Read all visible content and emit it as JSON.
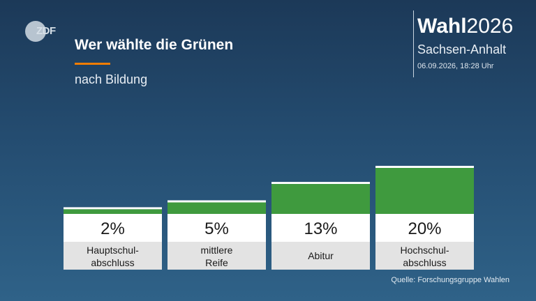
{
  "logo": {
    "text": "ZDF"
  },
  "header": {
    "title": "Wer wählte die Grünen",
    "subtitle": "nach Bildung"
  },
  "brand": {
    "name": "Wahl",
    "year": "2026",
    "region": "Sachsen-Anhalt",
    "timestamp": "06.09.2026, 18:28 Uhr"
  },
  "source": "Quelle: Forschungsgruppe Wahlen",
  "colors": {
    "bar": "#3f9a3e",
    "accent": "#f07d00",
    "value_box": "#ffffff",
    "label_box": "#e3e3e3"
  },
  "chart_data": {
    "type": "bar",
    "categories": [
      [
        "Hauptschul-",
        "abschluss"
      ],
      [
        "mittlere",
        "Reife"
      ],
      [
        "Abitur"
      ],
      [
        "Hochschul-",
        "abschluss"
      ]
    ],
    "values": [
      2,
      5,
      13,
      20
    ],
    "value_labels": [
      "2%",
      "5%",
      "13%",
      "20%"
    ],
    "unit": "%"
  }
}
